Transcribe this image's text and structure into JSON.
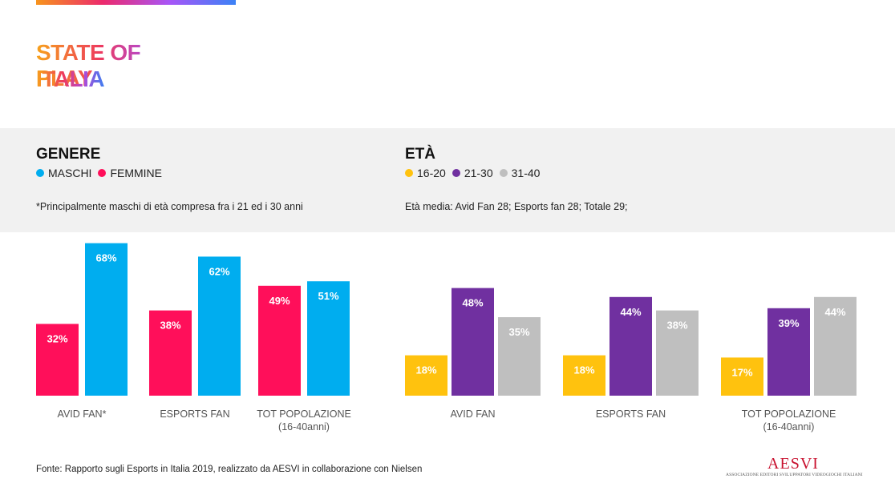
{
  "header": {
    "title_line1": "STATE OF PLAY",
    "title_line2": "ITALIA"
  },
  "genere": {
    "title": "GENERE",
    "legend": [
      {
        "label": "MASCHI",
        "color": "#00adef"
      },
      {
        "label": "FEMMINE",
        "color": "#ff0f5a"
      }
    ],
    "note": "*Principalmente maschi di età compresa fra i 21 ed i 30 anni"
  },
  "eta": {
    "title": "ETÀ",
    "legend": [
      {
        "label": "16-20",
        "color": "#ffc20e"
      },
      {
        "label": "21-30",
        "color": "#7030a0"
      },
      {
        "label": "31-40",
        "color": "#bfbfbf"
      }
    ],
    "note": "Età media: Avid Fan 28; Esports fan 28; Totale 29;"
  },
  "chart_data": [
    {
      "type": "bar",
      "categories": [
        "AVID FAN*",
        "ESPORTS FAN",
        "TOT POPOLAZIONE\n(16-40anni)"
      ],
      "series": [
        {
          "name": "FEMMINE",
          "color": "#ff0f5a",
          "values": [
            32,
            38,
            49
          ]
        },
        {
          "name": "MASCHI",
          "color": "#00adef",
          "values": [
            68,
            62,
            51
          ]
        }
      ],
      "ylim": [
        0,
        68
      ],
      "value_suffix": "%",
      "title": "GENERE"
    },
    {
      "type": "bar",
      "categories": [
        "AVID FAN",
        "ESPORTS FAN",
        "TOT POPOLAZIONE\n(16-40anni)"
      ],
      "series": [
        {
          "name": "16-20",
          "color": "#ffc20e",
          "values": [
            18,
            18,
            17
          ]
        },
        {
          "name": "21-30",
          "color": "#7030a0",
          "values": [
            48,
            44,
            39
          ]
        },
        {
          "name": "31-40",
          "color": "#bfbfbf",
          "values": [
            35,
            38,
            44
          ]
        }
      ],
      "value_suffix": "%",
      "title": "ETÀ"
    }
  ],
  "footer": {
    "source": "Fonte: Rapporto sugli Esports in Italia 2019, realizzato da AESVI in collaborazione con Nielsen",
    "logo_text": "AESVI",
    "logo_subtext": "ASSOCIAZIONE EDITORI SVILUPPATORI VIDEOGIOCHI ITALIANI"
  }
}
